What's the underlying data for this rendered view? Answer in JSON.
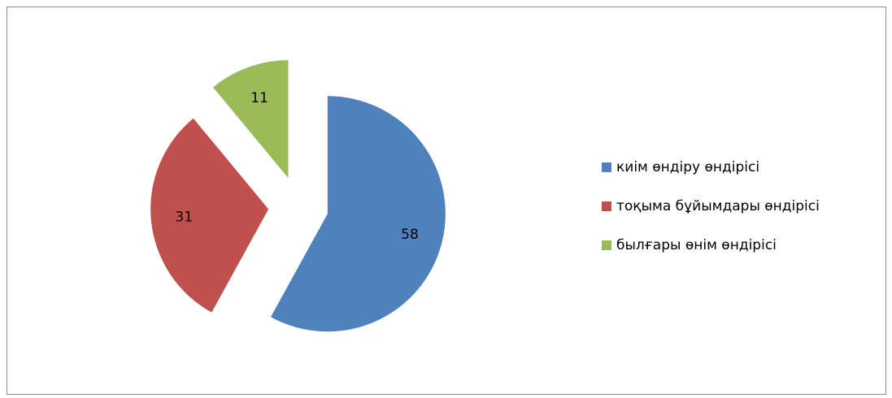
{
  "chart_data": {
    "type": "pie",
    "categories": [
      "киім өндіру өндірісі",
      "тоқыма бұйымдары өндірісі",
      "былғары өнім өндірісі"
    ],
    "values": [
      58,
      31,
      11
    ],
    "colors": [
      "#4f81bd",
      "#c0504d",
      "#9bbb59"
    ],
    "legend": "right"
  }
}
